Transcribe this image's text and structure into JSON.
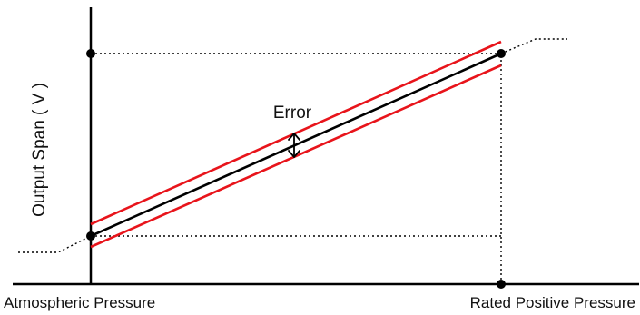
{
  "labels": {
    "y_axis": "Output Span ( V )",
    "x_left": "Atmospheric Pressure",
    "x_right": "Rated Positive Pressure",
    "error": "Error"
  },
  "colors": {
    "ideal_line": "#000000",
    "error_band": "#e8141b",
    "axes": "#000000",
    "guides": "#000000"
  },
  "icons": {
    "error_marker": "double-headed-arrow-icon"
  }
}
